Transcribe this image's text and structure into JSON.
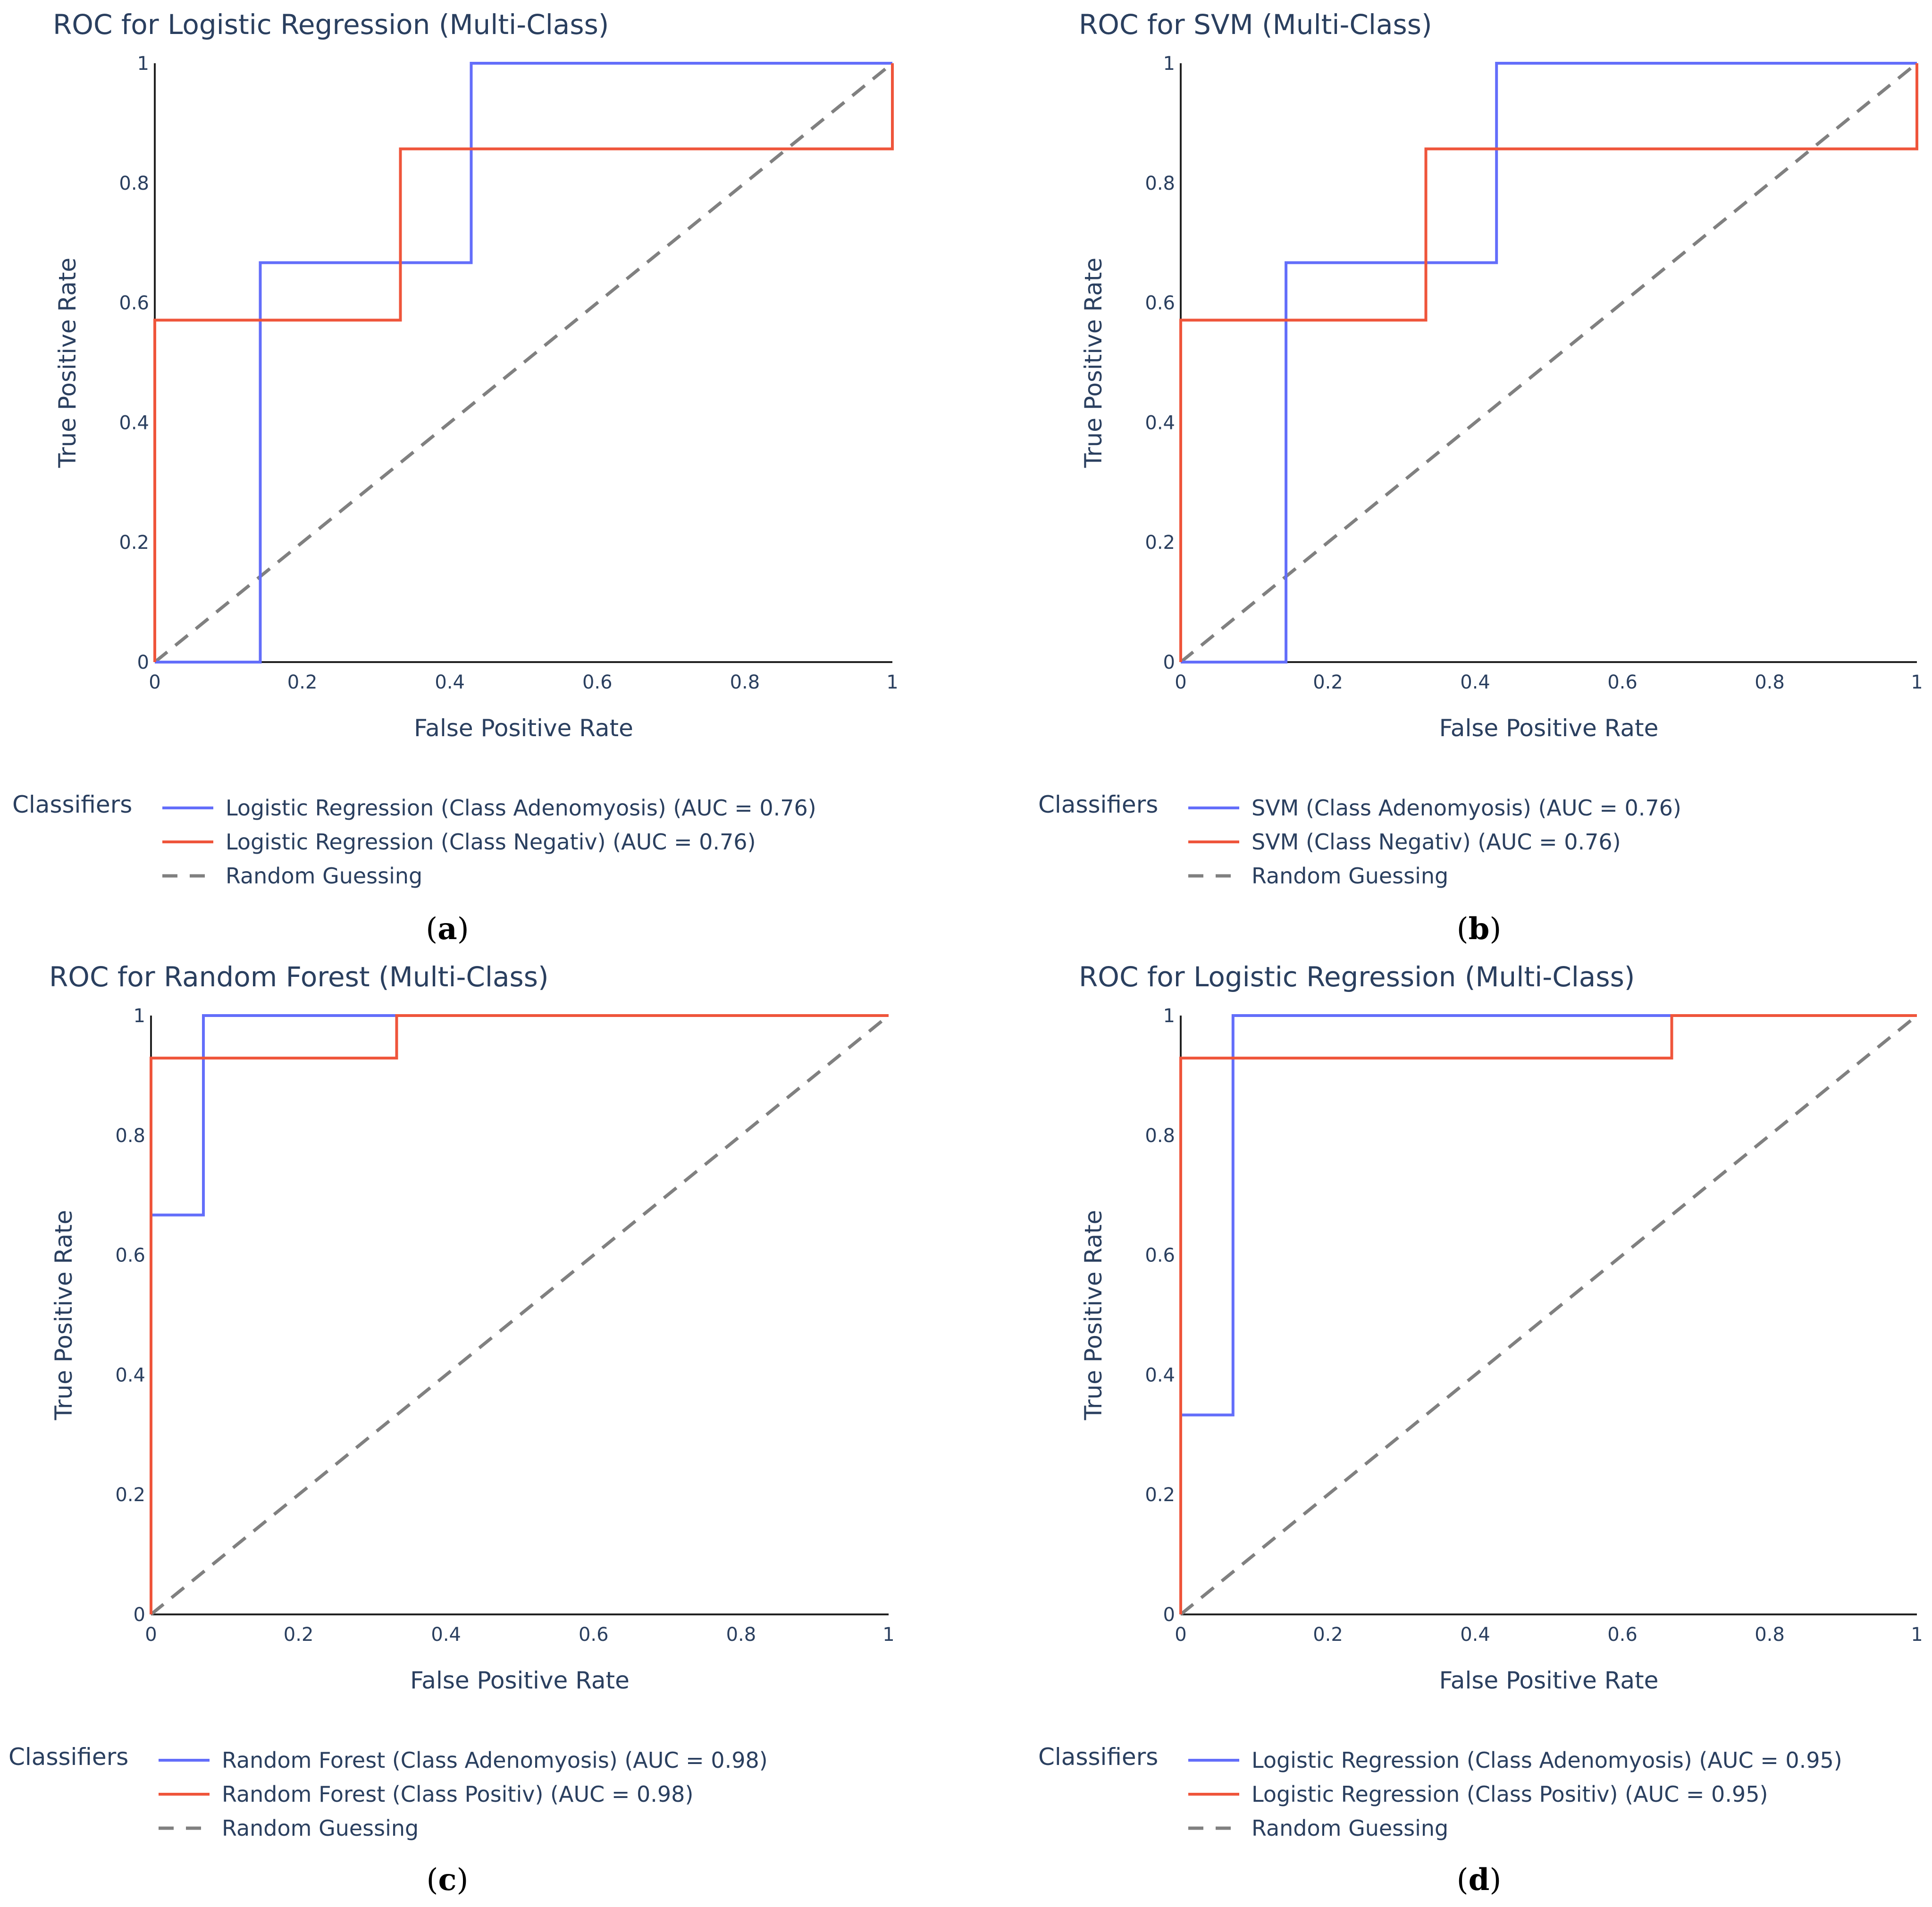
{
  "colors": {
    "series_a": "#636efa",
    "series_b": "#ef553b",
    "diagonal": "#808080",
    "text": "#2a3f5f"
  },
  "chart_data": [
    {
      "panel": "a",
      "type": "line",
      "title": "ROC for Logistic Regression (Multi-Class)",
      "xlabel": "False Positive Rate",
      "ylabel": "True Positive Rate",
      "xlim": [
        0,
        1
      ],
      "ylim": [
        0,
        1
      ],
      "xticks": [
        0,
        0.2,
        0.4,
        0.6,
        0.8,
        1
      ],
      "xtick_labels": [
        "0",
        "0.2",
        "0.4",
        "0.6",
        "0.8",
        "1"
      ],
      "yticks": [
        0,
        0.2,
        0.4,
        0.6,
        0.8,
        1
      ],
      "ytick_labels": [
        "0",
        "0.2",
        "0.4",
        "0.6",
        "0.8",
        "1"
      ],
      "legend_title": "Classifiers",
      "series": [
        {
          "name": "Logistic Regression (Class Adenomyosis) (AUC = 0.76)",
          "style": "solid",
          "color": "#636efa",
          "x": [
            0,
            0.143,
            0.143,
            0.429,
            0.429,
            1
          ],
          "y": [
            0,
            0,
            0.667,
            0.667,
            1,
            1
          ]
        },
        {
          "name": "Logistic Regression (Class Negativ) (AUC = 0.76)",
          "style": "solid",
          "color": "#ef553b",
          "x": [
            0,
            0,
            0.333,
            0.333,
            1,
            1
          ],
          "y": [
            0,
            0.571,
            0.571,
            0.857,
            0.857,
            1
          ]
        },
        {
          "name": "Random Guessing",
          "style": "dash",
          "color": "#808080",
          "x": [
            0,
            1
          ],
          "y": [
            0,
            1
          ]
        }
      ]
    },
    {
      "panel": "b",
      "type": "line",
      "title": "ROC for SVM (Multi-Class)",
      "xlabel": "False Positive Rate",
      "ylabel": "True Positive Rate",
      "xlim": [
        0,
        1
      ],
      "ylim": [
        0,
        1
      ],
      "xticks": [
        0,
        0.2,
        0.4,
        0.6,
        0.8,
        1
      ],
      "xtick_labels": [
        "0",
        "0.2",
        "0.4",
        "0.6",
        "0.8",
        "1"
      ],
      "yticks": [
        0,
        0.2,
        0.4,
        0.6,
        0.8,
        1
      ],
      "ytick_labels": [
        "0",
        "0.2",
        "0.4",
        "0.6",
        "0.8",
        "1"
      ],
      "legend_title": "Classifiers",
      "series": [
        {
          "name": "SVM (Class Adenomyosis) (AUC = 0.76)",
          "style": "solid",
          "color": "#636efa",
          "x": [
            0,
            0.143,
            0.143,
            0.429,
            0.429,
            1
          ],
          "y": [
            0,
            0,
            0.667,
            0.667,
            1,
            1
          ]
        },
        {
          "name": "SVM (Class Negativ) (AUC = 0.76)",
          "style": "solid",
          "color": "#ef553b",
          "x": [
            0,
            0,
            0.333,
            0.333,
            1,
            1
          ],
          "y": [
            0,
            0.571,
            0.571,
            0.857,
            0.857,
            1
          ]
        },
        {
          "name": "Random Guessing",
          "style": "dash",
          "color": "#808080",
          "x": [
            0,
            1
          ],
          "y": [
            0,
            1
          ]
        }
      ]
    },
    {
      "panel": "c",
      "type": "line",
      "title": "ROC for Random Forest (Multi-Class)",
      "xlabel": "False Positive Rate",
      "ylabel": "True Positive Rate",
      "xlim": [
        0,
        1
      ],
      "ylim": [
        0,
        1
      ],
      "xticks": [
        0,
        0.2,
        0.4,
        0.6,
        0.8,
        1
      ],
      "xtick_labels": [
        "0",
        "0.2",
        "0.4",
        "0.6",
        "0.8",
        "1"
      ],
      "yticks": [
        0,
        0.2,
        0.4,
        0.6,
        0.8,
        1
      ],
      "ytick_labels": [
        "0",
        "0.2",
        "0.4",
        "0.6",
        "0.8",
        "1"
      ],
      "legend_title": "Classifiers",
      "series": [
        {
          "name": "Random Forest (Class Adenomyosis) (AUC = 0.98)",
          "style": "solid",
          "color": "#636efa",
          "x": [
            0,
            0,
            0.071,
            0.071,
            1
          ],
          "y": [
            0,
            0.667,
            0.667,
            1,
            1
          ]
        },
        {
          "name": "Random Forest (Class Positiv) (AUC = 0.98)",
          "style": "solid",
          "color": "#ef553b",
          "x": [
            0,
            0,
            0.333,
            0.333,
            1
          ],
          "y": [
            0,
            0.929,
            0.929,
            1,
            1
          ]
        },
        {
          "name": "Random Guessing",
          "style": "dash",
          "color": "#808080",
          "x": [
            0,
            1
          ],
          "y": [
            0,
            1
          ]
        }
      ]
    },
    {
      "panel": "d",
      "type": "line",
      "title": "ROC for Logistic Regression (Multi-Class)",
      "xlabel": "False Positive Rate",
      "ylabel": "True Positive Rate",
      "xlim": [
        0,
        1
      ],
      "ylim": [
        0,
        1
      ],
      "xticks": [
        0,
        0.2,
        0.4,
        0.6,
        0.8,
        1
      ],
      "xtick_labels": [
        "0",
        "0.2",
        "0.4",
        "0.6",
        "0.8",
        "1"
      ],
      "yticks": [
        0,
        0.2,
        0.4,
        0.6,
        0.8,
        1
      ],
      "ytick_labels": [
        "0",
        "0.2",
        "0.4",
        "0.6",
        "0.8",
        "1"
      ],
      "legend_title": "Classifiers",
      "series": [
        {
          "name": "Logistic Regression (Class Adenomyosis) (AUC = 0.95)",
          "style": "solid",
          "color": "#636efa",
          "x": [
            0,
            0,
            0.071,
            0.071,
            1
          ],
          "y": [
            0,
            0.333,
            0.333,
            1,
            1
          ]
        },
        {
          "name": "Logistic Regression (Class Positiv) (AUC = 0.95)",
          "style": "solid",
          "color": "#ef553b",
          "x": [
            0,
            0,
            0.667,
            0.667,
            1
          ],
          "y": [
            0,
            0.929,
            0.929,
            1,
            1
          ]
        },
        {
          "name": "Random Guessing",
          "style": "dash",
          "color": "#808080",
          "x": [
            0,
            1
          ],
          "y": [
            0,
            1
          ]
        }
      ]
    }
  ],
  "captions": [
    {
      "open": "(",
      "letter": "a",
      "close": ")"
    },
    {
      "open": "(",
      "letter": "b",
      "close": ")"
    },
    {
      "open": "(",
      "letter": "c",
      "close": ")"
    },
    {
      "open": "(",
      "letter": "d",
      "close": ")"
    }
  ]
}
